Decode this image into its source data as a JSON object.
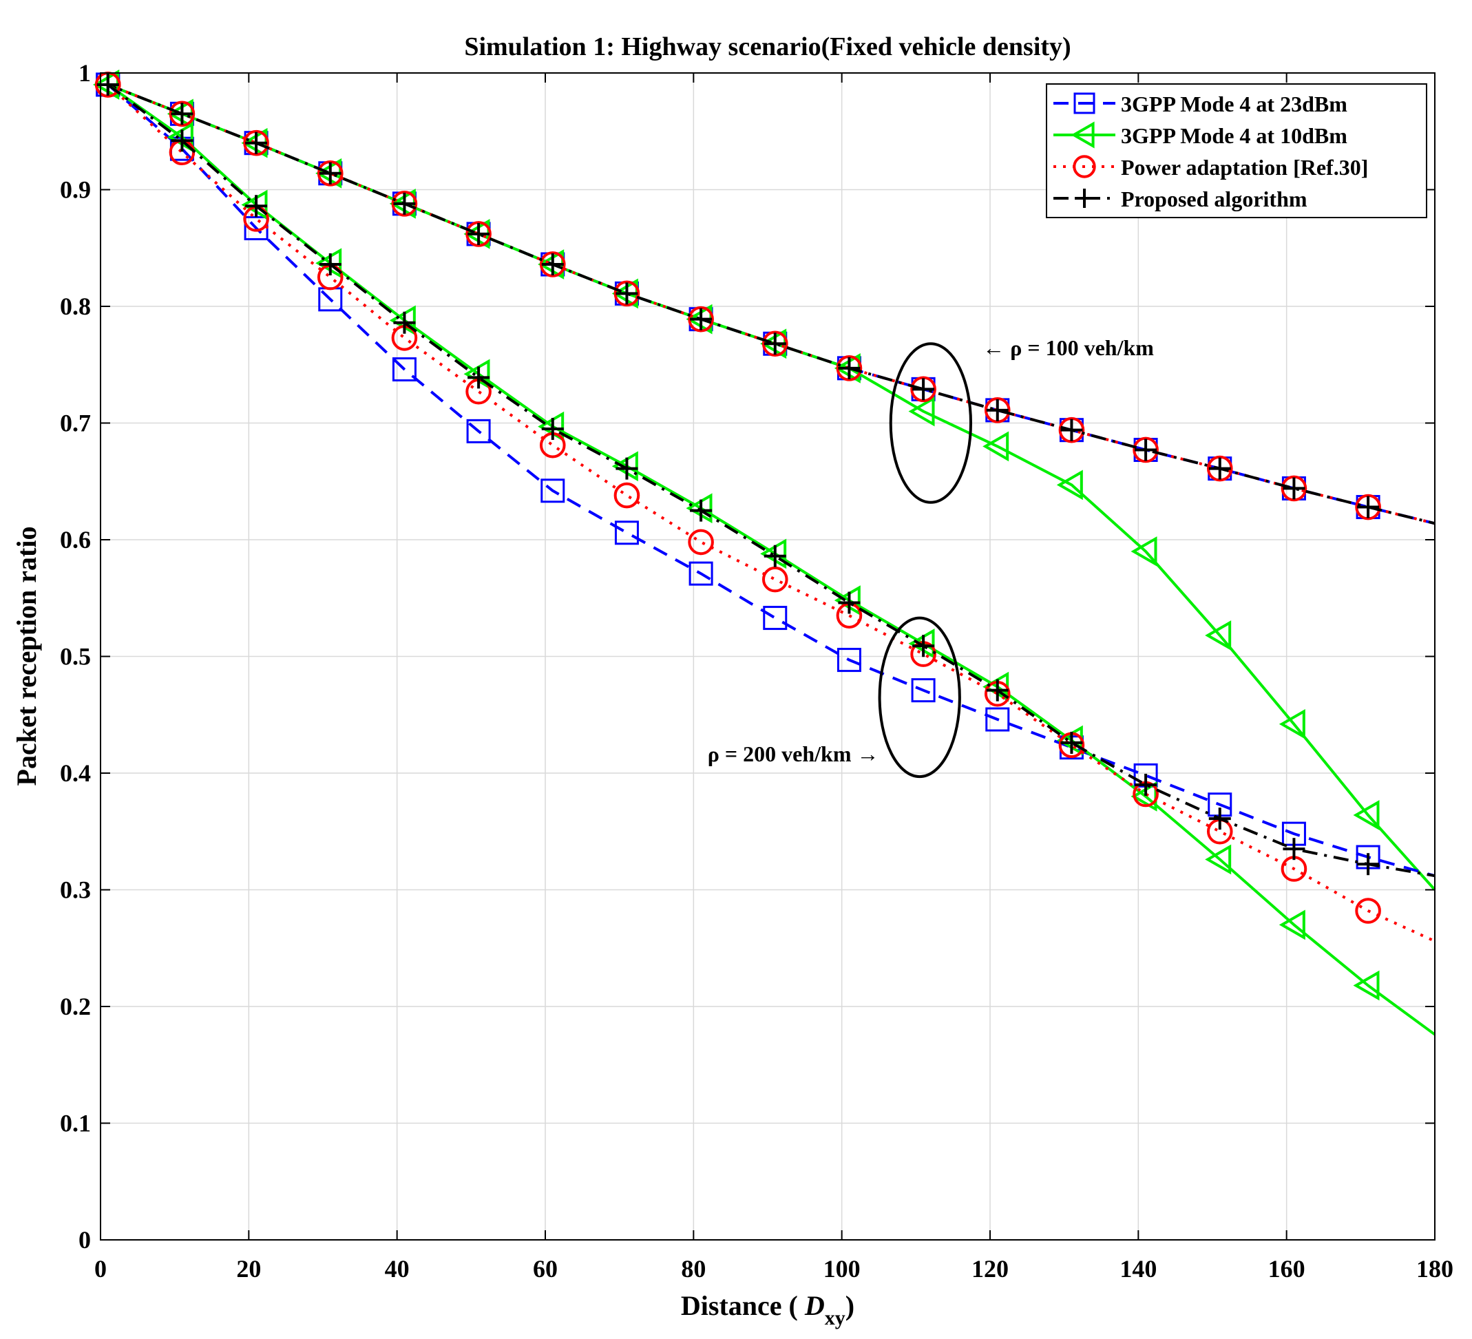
{
  "chart_data": {
    "type": "line",
    "title": "Simulation 1: Highway scenario(Fixed vehicle density)",
    "xlabel_prefix": "Distance ( ",
    "xlabel_symbol": "D",
    "xlabel_subscript": "xy",
    "xlabel_suffix": ")",
    "ylabel": "Packet reception ratio",
    "xlim": [
      0,
      180
    ],
    "ylim": [
      0,
      1
    ],
    "xticks": [
      0,
      20,
      40,
      60,
      80,
      100,
      120,
      140,
      160,
      180
    ],
    "yticks": [
      0,
      0.1,
      0.2,
      0.3,
      0.4,
      0.5,
      0.6,
      0.7,
      0.8,
      0.9,
      1
    ],
    "ytick_labels": [
      "0",
      "0.1",
      "0.2",
      "0.3",
      "0.4",
      "0.5",
      "0.6",
      "0.7",
      "0.8",
      "0.9",
      "1"
    ],
    "grid": true,
    "legend_position": "top-right",
    "marker_x": [
      1,
      11,
      21,
      31,
      41,
      51,
      61,
      71,
      81,
      91,
      101,
      111,
      121,
      131,
      141,
      151,
      161,
      171
    ],
    "groups": [
      {
        "name": "rho_100",
        "label": "← ρ = 100 veh/km",
        "series": [
          {
            "name": "3GPP Mode 4 at 23dBm",
            "color": "#0000ff",
            "marker": "square",
            "dash": "dash",
            "y": [
              0.99,
              0.965,
              0.94,
              0.914,
              0.888,
              0.862,
              0.836,
              0.811,
              0.789,
              0.768,
              0.747,
              0.729,
              0.711,
              0.694,
              0.677,
              0.661,
              0.644,
              0.628
            ],
            "end": [
              180,
              0.614
            ]
          },
          {
            "name": "3GPP Mode 4 at 10dBm",
            "color": "#00ee00",
            "marker": "triangle-left",
            "dash": "solid",
            "y": [
              0.99,
              0.965,
              0.94,
              0.914,
              0.888,
              0.862,
              0.836,
              0.811,
              0.789,
              0.768,
              0.747,
              0.71,
              0.68,
              0.647,
              0.59,
              0.518,
              0.442,
              0.364
            ],
            "end": [
              180,
              0.3
            ]
          },
          {
            "name": "Power adaptation [Ref.30]",
            "color": "#ff0000",
            "marker": "circle",
            "dash": "dot",
            "y": [
              0.99,
              0.965,
              0.94,
              0.914,
              0.888,
              0.862,
              0.836,
              0.811,
              0.789,
              0.768,
              0.747,
              0.729,
              0.711,
              0.694,
              0.677,
              0.661,
              0.644,
              0.628
            ],
            "end": [
              180,
              0.614
            ]
          },
          {
            "name": "Proposed algorithm",
            "color": "#000000",
            "marker": "plus",
            "dash": "dashdot",
            "y": [
              0.99,
              0.965,
              0.94,
              0.914,
              0.888,
              0.862,
              0.836,
              0.811,
              0.789,
              0.768,
              0.747,
              0.729,
              0.711,
              0.694,
              0.677,
              0.661,
              0.644,
              0.628
            ],
            "end": [
              180,
              0.614
            ]
          }
        ]
      },
      {
        "name": "rho_200",
        "label": "ρ = 200 veh/km →",
        "series": [
          {
            "name": "3GPP Mode 4 at 23dBm",
            "color": "#0000ff",
            "marker": "square",
            "dash": "dash",
            "y": [
              0.99,
              0.935,
              0.867,
              0.806,
              0.746,
              0.693,
              0.642,
              0.606,
              0.571,
              0.533,
              0.497,
              0.471,
              0.446,
              0.422,
              0.398,
              0.373,
              0.348,
              0.328
            ],
            "end": [
              180,
              0.312
            ]
          },
          {
            "name": "3GPP Mode 4 at 10dBm",
            "color": "#00ee00",
            "marker": "triangle-left",
            "dash": "solid",
            "y": [
              0.99,
              0.945,
              0.887,
              0.837,
              0.788,
              0.742,
              0.697,
              0.663,
              0.627,
              0.588,
              0.548,
              0.511,
              0.474,
              0.428,
              0.38,
              0.326,
              0.27,
              0.218
            ],
            "end": [
              180,
              0.176
            ]
          },
          {
            "name": "Power adaptation [Ref.30]",
            "color": "#ff0000",
            "marker": "circle",
            "dash": "dot",
            "y": [
              0.99,
              0.932,
              0.875,
              0.825,
              0.773,
              0.727,
              0.681,
              0.638,
              0.598,
              0.566,
              0.535,
              0.502,
              0.468,
              0.424,
              0.382,
              0.35,
              0.318,
              0.282
            ],
            "end": [
              180,
              0.256
            ]
          },
          {
            "name": "Proposed algorithm",
            "color": "#000000",
            "marker": "plus",
            "dash": "dashdot",
            "y": [
              0.99,
              0.942,
              0.886,
              0.836,
              0.786,
              0.739,
              0.695,
              0.661,
              0.625,
              0.586,
              0.546,
              0.509,
              0.471,
              0.426,
              0.39,
              0.361,
              0.335,
              0.322
            ],
            "end": [
              180,
              0.312
            ]
          }
        ]
      }
    ],
    "ellipses": [
      {
        "name": "ellipse-rho-100",
        "cx": 112,
        "cy": 0.7,
        "rx": 5.4,
        "ry": 0.068
      },
      {
        "name": "ellipse-rho-200",
        "cx": 110.5,
        "cy": 0.465,
        "rx": 5.4,
        "ry": 0.068
      }
    ],
    "legend": [
      {
        "label": "3GPP Mode 4 at 23dBm",
        "color": "#0000ff",
        "marker": "square",
        "dash": "dash"
      },
      {
        "label": "3GPP Mode 4 at 10dBm",
        "color": "#00ee00",
        "marker": "triangle-left",
        "dash": "solid"
      },
      {
        "label": "Power adaptation [Ref.30]",
        "color": "#ff0000",
        "marker": "circle",
        "dash": "dot"
      },
      {
        "label": "Proposed algorithm",
        "color": "#000000",
        "marker": "plus",
        "dash": "dashdot"
      }
    ]
  }
}
